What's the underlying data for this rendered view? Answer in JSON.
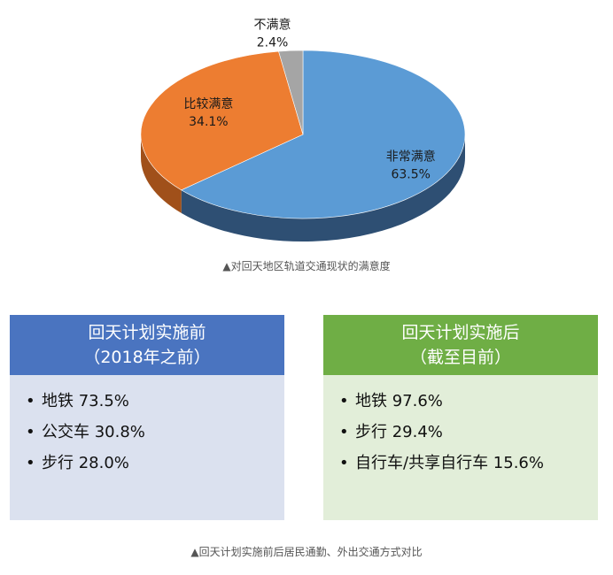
{
  "chart_data": {
    "type": "pie",
    "slices": [
      {
        "label": "非常满意",
        "value": 63.5,
        "value_label": "63.5%",
        "color": "#5b9bd5",
        "side_color": "#2e4f73"
      },
      {
        "label": "比较满意",
        "value": 34.1,
        "value_label": "34.1%",
        "color": "#ed7d31",
        "side_color": "#a0501a"
      },
      {
        "label": "不满意",
        "value": 2.4,
        "value_label": "2.4%",
        "color": "#a5a5a5",
        "side_color": "#707070"
      }
    ],
    "style": "3d",
    "legend": "none"
  },
  "caption_top": "▲对回天地区轨道交通现状的满意度",
  "panel_before": {
    "title_line1": "回天计划实施前",
    "title_line2": "（2018年之前）",
    "items": [
      "地铁 73.5%",
      "公交车 30.8%",
      "步行 28.0%"
    ]
  },
  "panel_after": {
    "title_line1": "回天计划实施后",
    "title_line2": "（截至目前）",
    "items": [
      "地铁 97.6%",
      "步行 29.4%",
      "自行车/共享自行车 15.6%"
    ]
  },
  "bullet": "•",
  "caption_bottom": "▲回天计划实施前后居民通勤、外出交通方式对比"
}
